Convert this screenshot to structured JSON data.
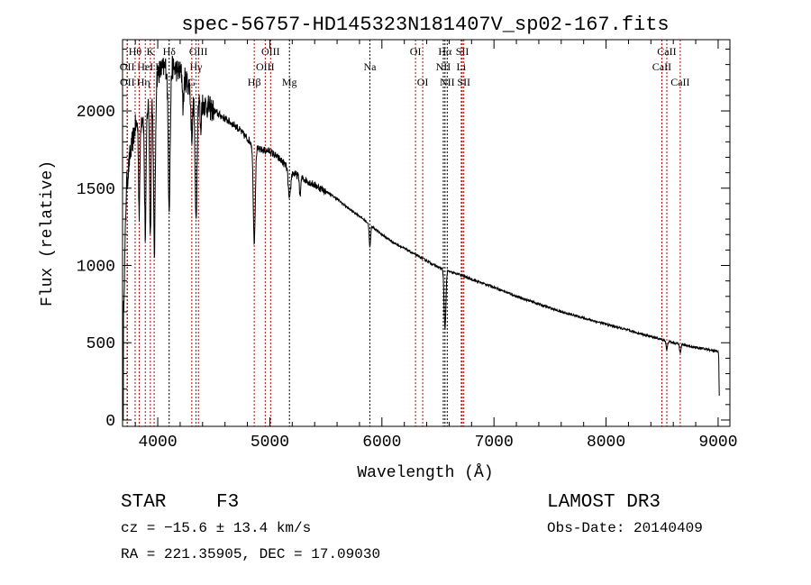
{
  "chart_data": {
    "type": "line",
    "title": "spec-56757-HD145323N181407V_sp02-167.fits",
    "xlabel": "Wavelength (Å)",
    "ylabel": "Flux (relative)",
    "xlim": [
      3686,
      9105
    ],
    "ylim": [
      -41,
      2461
    ],
    "xticks": [
      4000,
      5000,
      6000,
      7000,
      8000,
      9000
    ],
    "yticks": [
      0,
      500,
      1000,
      1500,
      2000
    ],
    "grid": false,
    "continuum": [
      [
        3690,
        0
      ],
      [
        3695,
        700
      ],
      [
        3720,
        1500
      ],
      [
        3750,
        1700
      ],
      [
        3800,
        1900
      ],
      [
        3900,
        2000
      ],
      [
        4000,
        2250
      ],
      [
        4100,
        2300
      ],
      [
        4200,
        2250
      ],
      [
        4300,
        2150
      ],
      [
        4400,
        2050
      ],
      [
        4500,
        2000
      ],
      [
        4600,
        1950
      ],
      [
        4700,
        1900
      ],
      [
        4800,
        1820
      ],
      [
        4900,
        1750
      ],
      [
        5000,
        1740
      ],
      [
        5100,
        1680
      ],
      [
        5200,
        1600
      ],
      [
        5300,
        1560
      ],
      [
        5400,
        1520
      ],
      [
        5500,
        1480
      ],
      [
        5600,
        1430
      ],
      [
        5700,
        1370
      ],
      [
        5800,
        1320
      ],
      [
        5900,
        1260
      ],
      [
        6000,
        1200
      ],
      [
        6100,
        1150
      ],
      [
        6200,
        1110
      ],
      [
        6300,
        1070
      ],
      [
        6400,
        1030
      ],
      [
        6500,
        990
      ],
      [
        6600,
        960
      ],
      [
        6700,
        940
      ],
      [
        6800,
        910
      ],
      [
        7000,
        860
      ],
      [
        7200,
        800
      ],
      [
        7400,
        750
      ],
      [
        7600,
        700
      ],
      [
        7800,
        660
      ],
      [
        8000,
        620
      ],
      [
        8200,
        580
      ],
      [
        8400,
        540
      ],
      [
        8600,
        500
      ],
      [
        8800,
        470
      ],
      [
        9000,
        445
      ],
      [
        9005,
        400
      ],
      [
        9012,
        50
      ]
    ],
    "absorptions": [
      [
        3835,
        600,
        6
      ],
      [
        3889,
        800,
        7
      ],
      [
        3934,
        900,
        6
      ],
      [
        3970,
        1100,
        8
      ],
      [
        4102,
        900,
        9
      ],
      [
        4227,
        200,
        5
      ],
      [
        4304,
        300,
        8
      ],
      [
        4341,
        800,
        9
      ],
      [
        4383,
        200,
        5
      ],
      [
        4861,
        620,
        9
      ],
      [
        5175,
        200,
        10
      ],
      [
        5270,
        120,
        6
      ],
      [
        5893,
        150,
        6
      ],
      [
        6563,
        380,
        8
      ],
      [
        8542,
        60,
        6
      ],
      [
        8662,
        50,
        6
      ]
    ],
    "lines": [
      {
        "name": "Hθ",
        "wl": 3798,
        "row": 0,
        "color": "#c00000"
      },
      {
        "name": "K",
        "wl": 3934,
        "row": 0,
        "color": "#c00000"
      },
      {
        "name": "Hδ",
        "wl": 4102,
        "row": 0,
        "color": "#000000"
      },
      {
        "name": "OIII",
        "wl": 4363,
        "row": 0,
        "color": "#c00000"
      },
      {
        "name": "OIII",
        "wl": 5007,
        "row": 0,
        "color": "#c00000"
      },
      {
        "name": "OI",
        "wl": 6300,
        "row": 0,
        "color": "#c00000"
      },
      {
        "name": "Hα",
        "wl": 6563,
        "row": 0,
        "color": "#000000"
      },
      {
        "name": "SII",
        "wl": 6717,
        "row": 0,
        "color": "#c00000"
      },
      {
        "name": "CaII",
        "wl": 8542,
        "row": 0,
        "color": "#c00000"
      },
      {
        "name": "OII",
        "wl": 3727,
        "row": 1,
        "color": "#c00000"
      },
      {
        "name": "HeI",
        "wl": 3889,
        "row": 1,
        "color": "#c00000"
      },
      {
        "name": "H",
        "wl": 3968,
        "row": 1,
        "color": "#c00000"
      },
      {
        "name": "Hγ",
        "wl": 4341,
        "row": 1,
        "color": "#c00000"
      },
      {
        "name": "OIII",
        "wl": 4959,
        "row": 1,
        "color": "#c00000"
      },
      {
        "name": "Na",
        "wl": 5893,
        "row": 1,
        "color": "#000000"
      },
      {
        "name": "NII",
        "wl": 6548,
        "row": 1,
        "color": "#000000"
      },
      {
        "name": "Li",
        "wl": 6708,
        "row": 1,
        "color": "#c00000"
      },
      {
        "name": "CaII",
        "wl": 8498,
        "row": 1,
        "color": "#c00000"
      },
      {
        "name": "OII",
        "wl": 3729,
        "row": 2,
        "color": "#c00000"
      },
      {
        "name": "Hη",
        "wl": 3835,
        "row": 2,
        "color": "#c00000"
      },
      {
        "name": "G",
        "wl": 4304,
        "row": 2,
        "color": "#c00000"
      },
      {
        "name": "Hβ",
        "wl": 4861,
        "row": 2,
        "color": "#c00000"
      },
      {
        "name": "Mg",
        "wl": 5175,
        "row": 2,
        "color": "#000000"
      },
      {
        "name": "OI",
        "wl": 6364,
        "row": 2,
        "color": "#c00000"
      },
      {
        "name": "NII",
        "wl": 6583,
        "row": 2,
        "color": "#000000"
      },
      {
        "name": "SII",
        "wl": 6731,
        "row": 2,
        "color": "#c00000"
      },
      {
        "name": "CaII",
        "wl": 8662,
        "row": 2,
        "color": "#c00000"
      }
    ]
  },
  "info": {
    "class": "STAR",
    "subclass": "F3",
    "survey": "LAMOST DR3",
    "cz": "cz = −15.6 ± 13.4 km/s",
    "obsdate": "Obs-Date: 20140409",
    "coords": "RA = 221.35905, DEC =  17.09030"
  }
}
